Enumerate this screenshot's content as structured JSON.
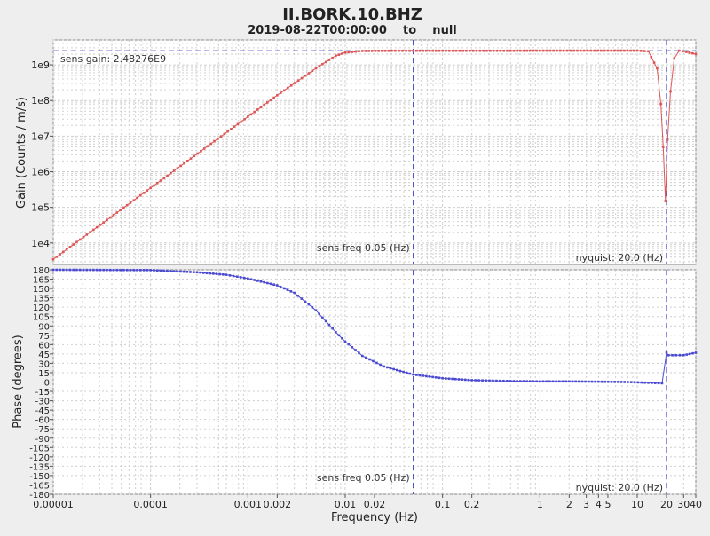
{
  "chart_data": {
    "type": "line",
    "title": "II.BORK.10.BHZ",
    "subtitle": "2019-08-22T00:00:00    to    null",
    "xlabel": "Frequency (Hz)",
    "x_scale": "log",
    "xlim": [
      1e-05,
      40
    ],
    "x_ticks": [
      {
        "value": 1e-05,
        "label": "0.00001"
      },
      {
        "value": 0.0001,
        "label": "0.0001"
      },
      {
        "value": 0.001,
        "label": "0.001"
      },
      {
        "value": 0.002,
        "label": "0.002"
      },
      {
        "value": 0.01,
        "label": "0.01"
      },
      {
        "value": 0.02,
        "label": "0.02"
      },
      {
        "value": 0.1,
        "label": "0.1"
      },
      {
        "value": 0.2,
        "label": "0.2"
      },
      {
        "value": 1,
        "label": "1"
      },
      {
        "value": 2,
        "label": "2"
      },
      {
        "value": 3,
        "label": "3"
      },
      {
        "value": 4,
        "label": "4"
      },
      {
        "value": 5,
        "label": "5"
      },
      {
        "value": 10,
        "label": "10"
      },
      {
        "value": 20,
        "label": "20"
      },
      {
        "value": 30,
        "label": "30"
      },
      {
        "value": 40,
        "label": "40"
      }
    ],
    "grid": true,
    "colors": {
      "gain": "#dd5555",
      "phase": "#4b4bd2",
      "ref_line": "#4b4bd2",
      "grid": "#cfcfcf"
    },
    "panels": [
      {
        "id": "gain",
        "ylabel": "Gain (Counts / m/s)",
        "y_scale": "log",
        "ylim": [
          2500,
          5000000000
        ],
        "y_ticks": [
          {
            "value": 10000,
            "label": "1e4"
          },
          {
            "value": 100000,
            "label": "1e5"
          },
          {
            "value": 1000000,
            "label": "1e6"
          },
          {
            "value": 10000000,
            "label": "1e7"
          },
          {
            "value": 100000000,
            "label": "1e8"
          },
          {
            "value": 1000000000,
            "label": "1e9"
          }
        ],
        "series": [
          {
            "values": [
              [
                1e-05,
                3500
              ],
              [
                0.0001,
                350000
              ],
              [
                0.001,
                35000000
              ],
              [
                0.002,
                140000000
              ],
              [
                0.005,
                800000000
              ],
              [
                0.008,
                1800000000
              ],
              [
                0.01,
                2200000000
              ],
              [
                0.015,
                2450000000
              ],
              [
                0.03,
                2480000000
              ],
              [
                0.05,
                2482760000
              ],
              [
                0.1,
                2480000000
              ],
              [
                0.5,
                2480000000
              ],
              [
                1,
                2500000000
              ],
              [
                5,
                2500000000
              ],
              [
                10,
                2500000000
              ],
              [
                13,
                2400000000
              ],
              [
                16,
                800000000
              ],
              [
                17.5,
                80000000
              ],
              [
                18.5,
                5000000
              ],
              [
                19.5,
                150000
              ],
              [
                20.5,
                8000000
              ],
              [
                22,
                180000000
              ],
              [
                24,
                1500000000
              ],
              [
                27,
                2500000000
              ],
              [
                32,
                2300000000
              ],
              [
                40,
                2000000000
              ]
            ]
          }
        ],
        "annotations": {
          "sens_gain": "sens gain: 2.48276E9",
          "sens_freq": "sens freq 0.05 (Hz)",
          "nyquist": "nyquist: 20.0 (Hz)"
        },
        "ref_lines": {
          "sens_gain_value": 2482760000,
          "sens_freq_value": 0.05,
          "nyquist_value": 20
        }
      },
      {
        "id": "phase",
        "ylabel": "Phase (degrees)",
        "y_scale": "linear",
        "ylim": [
          -180,
          180
        ],
        "y_ticks": [
          180,
          165,
          150,
          135,
          120,
          105,
          90,
          75,
          60,
          45,
          30,
          15,
          0,
          -15,
          -30,
          -45,
          -60,
          -75,
          -90,
          -105,
          -120,
          -135,
          -150,
          -165,
          -180
        ],
        "series": [
          {
            "values": [
              [
                1e-05,
                180
              ],
              [
                0.0001,
                179.5
              ],
              [
                0.0003,
                176
              ],
              [
                0.0006,
                172
              ],
              [
                0.001,
                166
              ],
              [
                0.002,
                155
              ],
              [
                0.003,
                143
              ],
              [
                0.005,
                115
              ],
              [
                0.008,
                80
              ],
              [
                0.01,
                65
              ],
              [
                0.015,
                42
              ],
              [
                0.025,
                25
              ],
              [
                0.05,
                12
              ],
              [
                0.1,
                6
              ],
              [
                0.2,
                3
              ],
              [
                0.5,
                1.5
              ],
              [
                1,
                1
              ],
              [
                2,
                1
              ],
              [
                4,
                0.5
              ],
              [
                8,
                0
              ],
              [
                12,
                -1
              ],
              [
                18,
                -2
              ],
              [
                20,
                47
              ],
              [
                21,
                43
              ],
              [
                30,
                43
              ],
              [
                40,
                47
              ]
            ]
          }
        ],
        "annotations": {
          "sens_freq": "sens freq 0.05 (Hz)",
          "nyquist": "nyquist: 20.0 (Hz)"
        },
        "ref_lines": {
          "sens_freq_value": 0.05,
          "nyquist_value": 20
        }
      }
    ]
  }
}
